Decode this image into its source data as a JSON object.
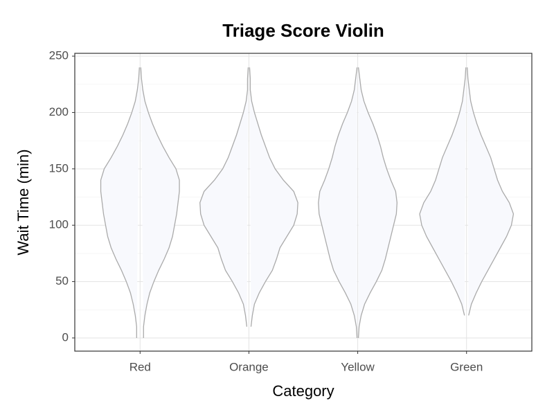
{
  "chart_data": {
    "type": "violin",
    "title": "Triage Score Violin",
    "x_label": "Category",
    "y_label": "Wait Time (min)",
    "categories": [
      "Red",
      "Orange",
      "Yellow",
      "Green"
    ],
    "y": [
      0,
      10,
      20,
      30,
      40,
      50,
      60,
      70,
      80,
      90,
      100,
      110,
      120,
      130,
      140,
      150,
      160,
      170,
      180,
      190,
      200,
      210,
      220,
      230,
      240
    ],
    "series": [
      {
        "name": "Red",
        "density": [
          5,
          5,
          7,
          10,
          14,
          20,
          27,
          35,
          42,
          47,
          50,
          53,
          55,
          57,
          57,
          52,
          42,
          33,
          25,
          18,
          12,
          7,
          4,
          2,
          1
        ]
      },
      {
        "name": "Orange",
        "density": [
          null,
          3,
          5,
          8,
          15,
          24,
          34,
          40,
          45,
          55,
          65,
          70,
          71,
          65,
          50,
          38,
          30,
          24,
          18,
          13,
          8,
          4,
          2,
          2,
          1
        ]
      },
      {
        "name": "Yellow",
        "density": [
          1,
          2,
          5,
          10,
          18,
          27,
          35,
          40,
          44,
          48,
          52,
          56,
          57,
          55,
          48,
          42,
          37,
          33,
          28,
          22,
          15,
          9,
          5,
          3,
          1
        ]
      },
      {
        "name": "Green",
        "density": [
          null,
          null,
          3,
          7,
          14,
          22,
          31,
          40,
          49,
          58,
          65,
          68,
          62,
          52,
          45,
          40,
          35,
          28,
          21,
          15,
          10,
          6,
          4,
          2,
          1
        ]
      }
    ],
    "fill": "#f8f9fd",
    "stroke": "#aaaaaa",
    "ylim": [
      -11.7,
      252.5
    ],
    "yticks": [
      0,
      50,
      100,
      150,
      200,
      250
    ],
    "y_minor_ticks": [
      25,
      75,
      125,
      175,
      225
    ],
    "grid": true
  }
}
